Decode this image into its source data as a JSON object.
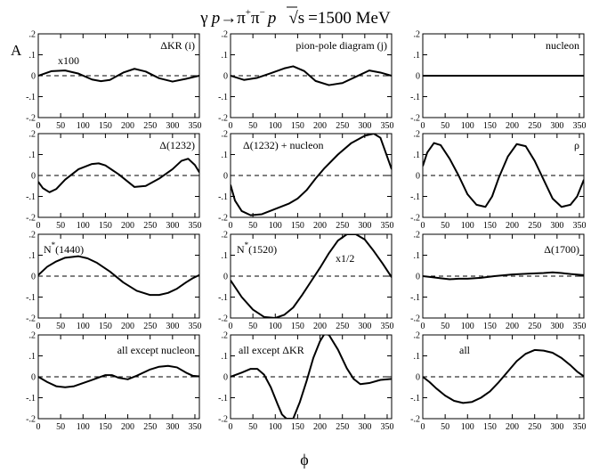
{
  "title": {
    "gamma": "γ",
    "p": "p",
    "arrow": "→",
    "pi": "π",
    "plus": "+",
    "minus": "−",
    "p2": "p",
    "sqrt": "√",
    "s": "s",
    "energy": "=1500 MeV"
  },
  "ylabel": "A",
  "xlabel": "ϕ",
  "chart_data": [
    {
      "type": "line",
      "title": "ΔKR (i)",
      "annotation": "x100",
      "x": [
        0,
        30,
        60,
        90,
        120,
        140,
        160,
        190,
        215,
        240,
        270,
        300,
        330,
        360
      ],
      "y": [
        0.0,
        0.022,
        0.025,
        0.01,
        -0.018,
        -0.026,
        -0.02,
        0.015,
        0.033,
        0.02,
        -0.012,
        -0.028,
        -0.015,
        0.0
      ],
      "xlim": [
        0,
        360
      ],
      "ylim": [
        -0.2,
        0.2
      ],
      "xticks": [
        0,
        50,
        100,
        150,
        200,
        250,
        300,
        350
      ],
      "yticks": [
        -0.2,
        -0.1,
        0,
        0.1,
        0.2
      ]
    },
    {
      "type": "line",
      "title": "pion-pole diagram (j)",
      "x": [
        0,
        30,
        60,
        90,
        120,
        140,
        165,
        190,
        220,
        250,
        280,
        310,
        335,
        360
      ],
      "y": [
        0.0,
        -0.02,
        -0.01,
        0.012,
        0.035,
        0.045,
        0.022,
        -0.025,
        -0.045,
        -0.035,
        -0.005,
        0.025,
        0.015,
        0.0
      ],
      "xlim": [
        0,
        360
      ],
      "ylim": [
        -0.2,
        0.2
      ],
      "xticks": [
        0,
        50,
        100,
        150,
        200,
        250,
        300,
        350
      ],
      "yticks": [
        -0.2,
        -0.1,
        0,
        0.1,
        0.2
      ]
    },
    {
      "type": "line",
      "title": "nucleon",
      "x": [
        0,
        360
      ],
      "y": [
        0.0,
        0.0
      ],
      "xlim": [
        0,
        360
      ],
      "ylim": [
        -0.2,
        0.2
      ],
      "xticks": [
        0,
        50,
        100,
        150,
        200,
        250,
        300,
        350
      ],
      "yticks": [
        -0.2,
        -0.1,
        0,
        0.1,
        0.2
      ]
    },
    {
      "type": "line",
      "title": "Δ(1232)",
      "x": [
        0,
        10,
        25,
        40,
        60,
        90,
        120,
        135,
        150,
        180,
        215,
        240,
        270,
        300,
        320,
        335,
        350,
        360
      ],
      "y": [
        -0.03,
        -0.06,
        -0.08,
        -0.065,
        -0.02,
        0.03,
        0.055,
        0.058,
        0.048,
        0.005,
        -0.055,
        -0.05,
        -0.015,
        0.03,
        0.07,
        0.08,
        0.05,
        0.015
      ],
      "xlim": [
        0,
        360
      ],
      "ylim": [
        -0.2,
        0.2
      ],
      "xticks": [
        0,
        50,
        100,
        150,
        200,
        250,
        300,
        350
      ],
      "yticks": [
        -0.2,
        -0.1,
        0,
        0.1,
        0.2
      ]
    },
    {
      "type": "line",
      "title": "Δ(1232) + nucleon",
      "x": [
        0,
        10,
        25,
        45,
        70,
        100,
        130,
        150,
        170,
        190,
        210,
        240,
        270,
        300,
        320,
        335,
        350,
        360
      ],
      "y": [
        -0.045,
        -0.12,
        -0.17,
        -0.19,
        -0.185,
        -0.16,
        -0.135,
        -0.11,
        -0.07,
        -0.015,
        0.035,
        0.1,
        0.155,
        0.19,
        0.2,
        0.18,
        0.09,
        0.03
      ],
      "xlim": [
        0,
        360
      ],
      "ylim": [
        -0.2,
        0.2
      ],
      "xticks": [
        0,
        50,
        100,
        150,
        200,
        250,
        300,
        350
      ],
      "yticks": [
        -0.2,
        -0.1,
        0,
        0.1,
        0.2
      ]
    },
    {
      "type": "line",
      "title": "ρ",
      "x": [
        0,
        10,
        25,
        40,
        60,
        80,
        100,
        120,
        140,
        155,
        170,
        190,
        210,
        230,
        250,
        270,
        290,
        310,
        330,
        345,
        360
      ],
      "y": [
        0.045,
        0.11,
        0.155,
        0.145,
        0.08,
        0.0,
        -0.09,
        -0.14,
        -0.15,
        -0.1,
        -0.01,
        0.09,
        0.15,
        0.14,
        0.07,
        -0.02,
        -0.11,
        -0.15,
        -0.14,
        -0.1,
        -0.02
      ],
      "xlim": [
        0,
        360
      ],
      "ylim": [
        -0.2,
        0.2
      ],
      "xticks": [
        0,
        50,
        100,
        150,
        200,
        250,
        300,
        350
      ],
      "yticks": [
        -0.2,
        -0.1,
        0,
        0.1,
        0.2
      ]
    },
    {
      "type": "line",
      "title": "N*(1440)",
      "x": [
        0,
        20,
        40,
        60,
        90,
        110,
        130,
        160,
        190,
        220,
        250,
        270,
        290,
        310,
        330,
        345,
        360
      ],
      "y": [
        0.005,
        0.045,
        0.07,
        0.088,
        0.095,
        0.085,
        0.065,
        0.022,
        -0.03,
        -0.07,
        -0.09,
        -0.09,
        -0.08,
        -0.06,
        -0.03,
        -0.01,
        0.005
      ],
      "xlim": [
        0,
        360
      ],
      "ylim": [
        -0.2,
        0.2
      ],
      "xticks": [
        0,
        50,
        100,
        150,
        200,
        250,
        300,
        350
      ],
      "yticks": [
        -0.2,
        -0.1,
        0,
        0.1,
        0.2
      ]
    },
    {
      "type": "line",
      "title": "N*(1520)",
      "annotation": "x1/2",
      "x": [
        0,
        25,
        50,
        75,
        100,
        120,
        140,
        160,
        180,
        200,
        220,
        240,
        260,
        280,
        300,
        320,
        340,
        360
      ],
      "y": [
        -0.02,
        -0.1,
        -0.16,
        -0.195,
        -0.2,
        -0.185,
        -0.15,
        -0.09,
        -0.025,
        0.04,
        0.11,
        0.17,
        0.2,
        0.2,
        0.175,
        0.12,
        0.06,
        -0.005
      ],
      "xlim": [
        0,
        360
      ],
      "ylim": [
        -0.2,
        0.2
      ],
      "xticks": [
        0,
        50,
        100,
        150,
        200,
        250,
        300,
        350
      ],
      "yticks": [
        -0.2,
        -0.1,
        0,
        0.1,
        0.2
      ]
    },
    {
      "type": "line",
      "title": "Δ(1700)",
      "x": [
        0,
        20,
        40,
        60,
        80,
        100,
        130,
        160,
        200,
        240,
        270,
        290,
        310,
        330,
        360
      ],
      "y": [
        0.0,
        -0.005,
        -0.01,
        -0.015,
        -0.012,
        -0.012,
        -0.008,
        0.0,
        0.008,
        0.012,
        0.015,
        0.018,
        0.015,
        0.01,
        0.005
      ],
      "xlim": [
        0,
        360
      ],
      "ylim": [
        -0.2,
        0.2
      ],
      "xticks": [
        0,
        50,
        100,
        150,
        200,
        250,
        300,
        350
      ],
      "yticks": [
        -0.2,
        -0.1,
        0,
        0.1,
        0.2
      ]
    },
    {
      "type": "line",
      "title": "all except nucleon",
      "x": [
        0,
        20,
        40,
        60,
        80,
        100,
        120,
        150,
        165,
        180,
        200,
        220,
        250,
        270,
        290,
        310,
        330,
        345,
        360
      ],
      "y": [
        0.0,
        -0.025,
        -0.045,
        -0.05,
        -0.045,
        -0.03,
        -0.015,
        0.008,
        0.008,
        -0.005,
        -0.012,
        0.005,
        0.035,
        0.048,
        0.052,
        0.045,
        0.02,
        0.005,
        0.002
      ],
      "xlim": [
        0,
        360
      ],
      "ylim": [
        -0.2,
        0.2
      ],
      "xticks": [
        0,
        50,
        100,
        150,
        200,
        250,
        300,
        350
      ],
      "yticks": [
        -0.2,
        -0.1,
        0,
        0.1,
        0.2
      ]
    },
    {
      "type": "line",
      "title": "all except ΔKR",
      "x": [
        0,
        25,
        45,
        60,
        75,
        90,
        105,
        115,
        125,
        140,
        155,
        170,
        185,
        200,
        210,
        220,
        240,
        260,
        275,
        290,
        310,
        335,
        360
      ],
      "y": [
        0.0,
        0.02,
        0.038,
        0.038,
        0.01,
        -0.05,
        -0.13,
        -0.18,
        -0.2,
        -0.2,
        -0.12,
        -0.02,
        0.09,
        0.17,
        0.205,
        0.2,
        0.13,
        0.04,
        -0.01,
        -0.035,
        -0.03,
        -0.015,
        -0.01
      ],
      "xlim": [
        0,
        360
      ],
      "ylim": [
        -0.2,
        0.2
      ],
      "xticks": [
        0,
        50,
        100,
        150,
        200,
        250,
        300,
        350
      ],
      "yticks": [
        -0.2,
        -0.1,
        0,
        0.1,
        0.2
      ]
    },
    {
      "type": "line",
      "title": "all",
      "x": [
        0,
        15,
        30,
        50,
        70,
        90,
        110,
        130,
        150,
        170,
        190,
        210,
        230,
        250,
        270,
        290,
        310,
        330,
        345,
        360
      ],
      "y": [
        0.0,
        -0.025,
        -0.055,
        -0.09,
        -0.115,
        -0.125,
        -0.12,
        -0.1,
        -0.07,
        -0.025,
        0.025,
        0.075,
        0.11,
        0.128,
        0.125,
        0.115,
        0.09,
        0.055,
        0.025,
        0.002
      ],
      "xlim": [
        0,
        360
      ],
      "ylim": [
        -0.2,
        0.2
      ],
      "xticks": [
        0,
        50,
        100,
        150,
        200,
        250,
        300,
        350
      ],
      "yticks": [
        -0.2,
        -0.1,
        0,
        0.1,
        0.2
      ]
    }
  ]
}
